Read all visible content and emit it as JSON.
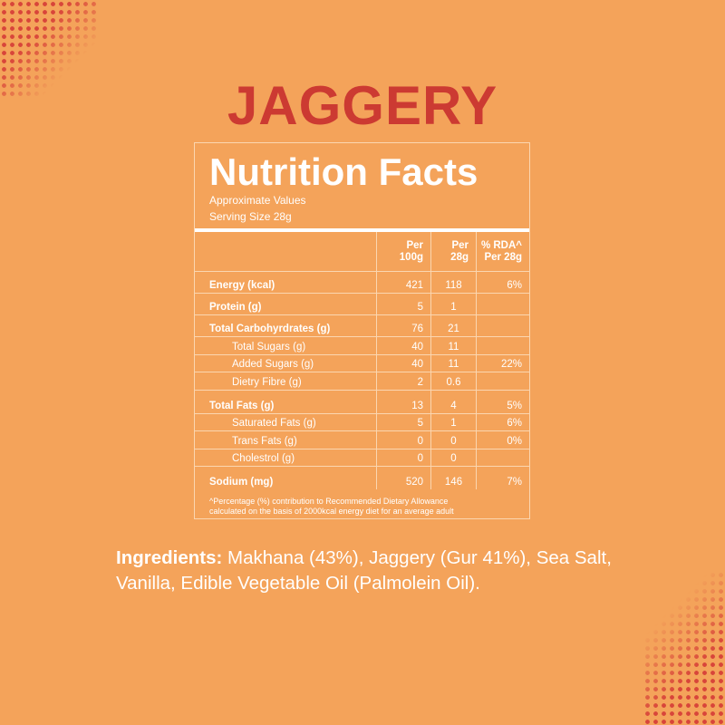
{
  "title": "JAGGERY",
  "nutrition": {
    "heading": "Nutrition Facts",
    "approx": "Approximate Values",
    "serving": "Serving Size 28g",
    "columns": {
      "per100_line1": "Per",
      "per100_line2": "100g",
      "per28_line1": "Per",
      "per28_line2": "28g",
      "rda_line1": "% RDA^",
      "rda_line2": "Per 28g"
    },
    "rows": [
      {
        "label": "Energy (kcal)",
        "per100": "421",
        "per28": "118",
        "rda": "6%"
      },
      {
        "label": "Protein (g)",
        "per100": "5",
        "per28": "1",
        "rda": ""
      },
      {
        "label": "Total Carbohyrdrates (g)",
        "per100": "76",
        "per28": "21",
        "rda": ""
      },
      {
        "label": "Total Sugars (g)",
        "per100": "40",
        "per28": "11",
        "rda": ""
      },
      {
        "label": "Added Sugars (g)",
        "per100": "40",
        "per28": "11",
        "rda": "22%"
      },
      {
        "label": "Dietry Fibre (g)",
        "per100": "2",
        "per28": "0.6",
        "rda": ""
      },
      {
        "label": "Total Fats (g)",
        "per100": "13",
        "per28": "4",
        "rda": "5%"
      },
      {
        "label": "Saturated Fats (g)",
        "per100": "5",
        "per28": "1",
        "rda": "6%"
      },
      {
        "label": "Trans Fats (g)",
        "per100": "0",
        "per28": "0",
        "rda": "0%"
      },
      {
        "label": "Cholestrol (g)",
        "per100": "0",
        "per28": "0",
        "rda": ""
      },
      {
        "label": "Sodium (mg)",
        "per100": "520",
        "per28": "146",
        "rda": "7%"
      }
    ],
    "footnote_line1": "^Percentage (%) contribution to Recommended Dietary Allowance",
    "footnote_line2": "calculated on the basis of 2000kcal energy diet for an average adult"
  },
  "ingredients": {
    "label": "Ingredients:",
    "text": " Makhana (43%), Jaggery (Gur 41%), Sea Salt, Vanilla, Edible Vegetable Oil (Palmolein Oil)."
  },
  "colors": {
    "background": "#f4a35a",
    "title": "#cc3a32",
    "dots": "#d8453a",
    "text": "#ffffff"
  }
}
